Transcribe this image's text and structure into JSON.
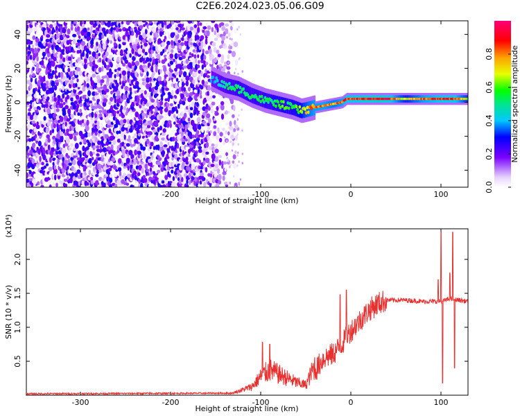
{
  "title": "C2E6.2024.023.05.06.G09",
  "chart_data": [
    {
      "type": "heatmap",
      "xlabel": "Height of straight line (km)",
      "ylabel": "Frequency (Hz)",
      "xlim": [
        -360,
        130
      ],
      "ylim": [
        -50,
        48
      ],
      "xticks": [
        -300,
        -200,
        -100,
        0,
        100
      ],
      "yticks": [
        -40,
        -20,
        0,
        20,
        40
      ],
      "colorbar": {
        "label": "Normalized spectral amplitude",
        "range": [
          0.0,
          1.0
        ],
        "ticks": [
          0.0,
          0.2,
          0.4,
          0.6,
          0.8
        ],
        "colormap": "rainbow: white/light-violet at 0, purple, blue, cyan, green, yellow, orange, red, magenta at 1"
      },
      "regions": [
        {
          "x_range": [
            -360,
            -130
          ],
          "description": "noise field, amplitude 0.0–0.3 spread over all frequencies"
        },
        {
          "x_range": [
            -150,
            -45
          ],
          "freq_start": 12,
          "freq_end": -5,
          "amplitude": 0.6
        },
        {
          "x_range": [
            -45,
            0
          ],
          "freq_start": -3,
          "freq_end": 2,
          "amplitude": 0.85
        },
        {
          "x_range": [
            0,
            130
          ],
          "freq_start": 2,
          "freq_end": 2,
          "amplitude": 0.95
        }
      ],
      "trace": {
        "x": [
          -155,
          -140,
          -125,
          -110,
          -95,
          -80,
          -65,
          -55,
          -47,
          -40,
          -30,
          -20,
          -10,
          -5,
          0,
          20,
          40,
          60,
          80,
          100,
          115,
          130
        ],
        "freq": [
          14,
          10,
          8,
          4,
          1,
          -1,
          -3,
          -5,
          -4,
          -3,
          -2,
          -1,
          0,
          2,
          2,
          2,
          2,
          2,
          2,
          2,
          2,
          2
        ],
        "amplitude": [
          0.4,
          0.5,
          0.55,
          0.55,
          0.55,
          0.6,
          0.6,
          0.7,
          0.8,
          0.85,
          0.85,
          0.8,
          0.85,
          0.9,
          0.9,
          0.95,
          0.95,
          0.7,
          0.85,
          0.9,
          0.9,
          0.7
        ]
      }
    },
    {
      "type": "line",
      "xlabel": "Height of straight line (km)",
      "ylabel": "SNR (10 * v/v)",
      "y_multiplier": "(x10⁴)",
      "xlim": [
        -360,
        130
      ],
      "ylim": [
        0,
        2.45
      ],
      "xticks": [
        -300,
        -200,
        -100,
        0,
        100
      ],
      "yticks": [
        0.5,
        1.0,
        1.5,
        2.0
      ],
      "color": "#e8302f",
      "series": [
        {
          "x": [
            -360,
            -130,
            -110,
            -100,
            -90,
            -80,
            -70,
            -60,
            -50,
            -40,
            -30,
            -20,
            -10,
            0,
            10,
            20,
            30,
            40,
            60,
            80,
            100,
            110,
            120,
            130
          ],
          "y": [
            0.02,
            0.03,
            0.1,
            0.22,
            0.3,
            0.25,
            0.2,
            0.15,
            0.12,
            0.35,
            0.55,
            0.6,
            0.75,
            0.95,
            1.1,
            1.25,
            1.35,
            1.4,
            1.4,
            1.38,
            1.38,
            1.42,
            1.4,
            1.38
          ]
        }
      ],
      "spikes": [
        {
          "x": -98,
          "y": 0.78
        },
        {
          "x": -90,
          "y": 0.75
        },
        {
          "x": -12,
          "y": 1.48
        },
        {
          "x": -5,
          "y": 1.55
        },
        {
          "x": 97,
          "y": 1.7
        },
        {
          "x": 100,
          "y": 2.4
        },
        {
          "x": 102,
          "y": 0.18
        },
        {
          "x": 110,
          "y": 1.8
        },
        {
          "x": 113,
          "y": 2.4
        },
        {
          "x": 115,
          "y": 0.4
        }
      ]
    }
  ]
}
